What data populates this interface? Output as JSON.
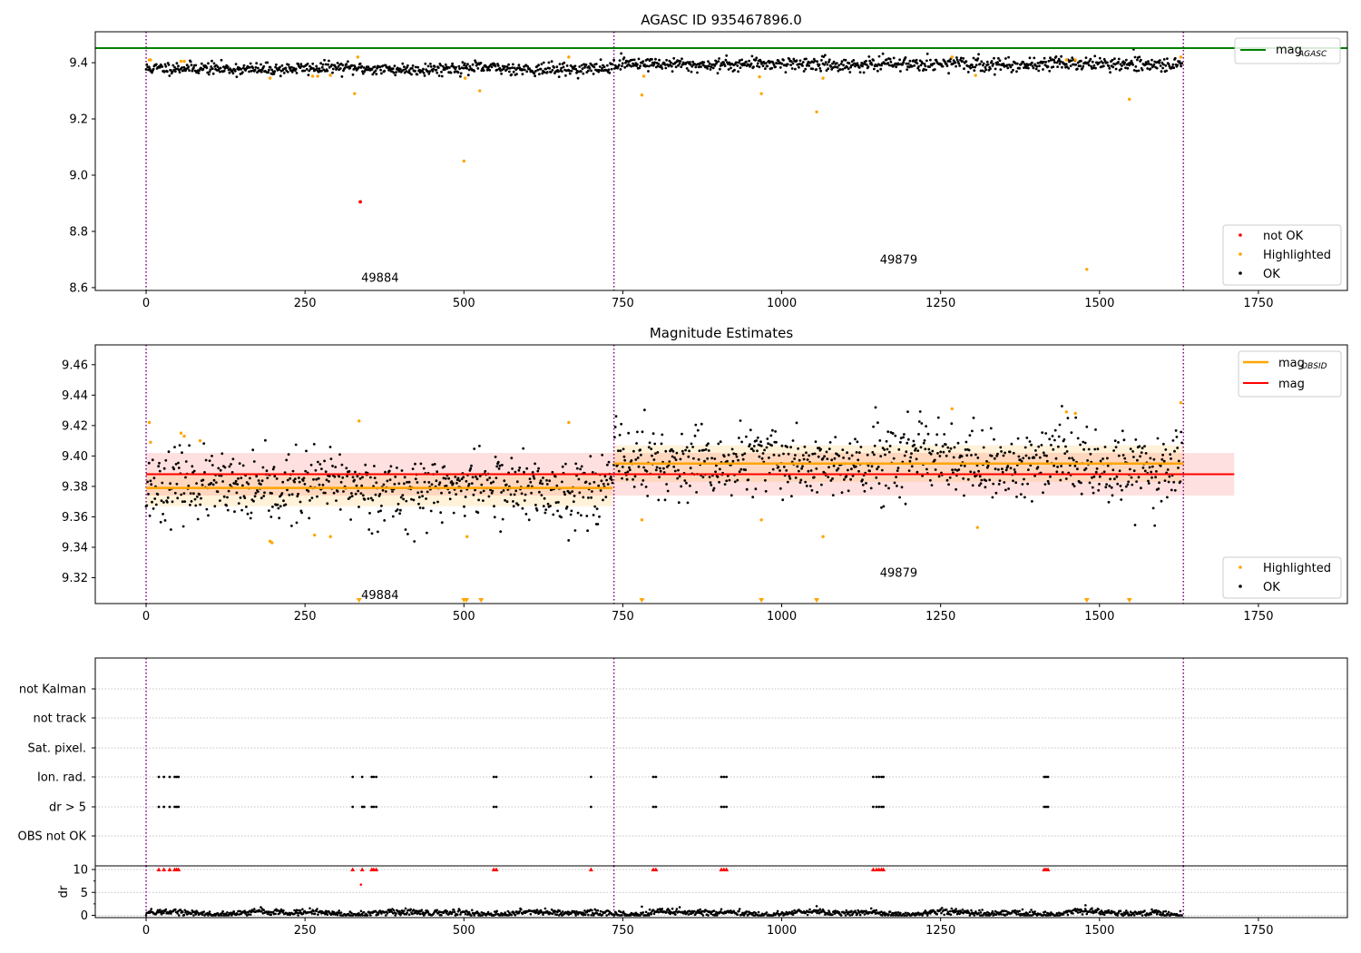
{
  "chart_data": [
    {
      "type": "scatter",
      "title": "AGASC ID 935467896.0",
      "xlabel": "",
      "ylabel": "",
      "xlim": [
        -80,
        1890
      ],
      "ylim": [
        8.59,
        9.51
      ],
      "xticks": [
        0,
        250,
        500,
        750,
        1000,
        1250,
        1500,
        1750
      ],
      "yticks": [
        8.6,
        8.8,
        9.0,
        9.2,
        9.4
      ],
      "ytick_labels": [
        "8.6",
        "8.8",
        "9.0",
        "9.2",
        "9.4"
      ],
      "grid": false,
      "obsid_boundaries": [
        0,
        736,
        1632
      ],
      "obsid_labels": [
        {
          "text": "49884",
          "x": 368,
          "y": 8.62
        },
        {
          "text": "49879",
          "x": 1184,
          "y": 8.685
        }
      ],
      "reference_line": {
        "name": "mag",
        "name_sub": "AGASC",
        "y": 9.452,
        "color": "#008000"
      },
      "series": [
        {
          "name": "not OK",
          "color": "#ff0000",
          "points": [
            [
              337,
              8.905
            ]
          ]
        },
        {
          "name": "Highlighted",
          "color": "#ffa500",
          "points": [
            [
              5,
              9.41
            ],
            [
              7,
              9.41
            ],
            [
              55,
              9.405
            ],
            [
              60,
              9.405
            ],
            [
              195,
              9.345
            ],
            [
              262,
              9.352
            ],
            [
              270,
              9.352
            ],
            [
              290,
              9.355
            ],
            [
              328,
              9.29
            ],
            [
              333,
              9.42
            ],
            [
              500,
              9.05
            ],
            [
              502,
              9.345
            ],
            [
              525,
              9.3
            ],
            [
              665,
              9.42
            ],
            [
              780,
              9.285
            ],
            [
              783,
              9.352
            ],
            [
              965,
              9.35
            ],
            [
              968,
              9.29
            ],
            [
              1055,
              9.225
            ],
            [
              1065,
              9.345
            ],
            [
              1268,
              9.42
            ],
            [
              1305,
              9.355
            ],
            [
              1448,
              9.41
            ],
            [
              1462,
              9.41
            ],
            [
              1480,
              8.665
            ],
            [
              1547,
              9.27
            ],
            [
              1628,
              9.42
            ]
          ]
        },
        {
          "name": "OK",
          "color": "#000000",
          "segments": [
            {
              "start": 0,
              "end": 734,
              "mean": 9.379,
              "std": 0.011
            },
            {
              "start": 736,
              "end": 1630,
              "mean": 9.395,
              "std": 0.012
            }
          ]
        }
      ],
      "legends": [
        {
          "placement": "upper-right",
          "entries": [
            "mag_AGASC"
          ]
        },
        {
          "placement": "lower-right",
          "entries": [
            "not OK",
            "Highlighted",
            "OK"
          ]
        }
      ]
    },
    {
      "type": "scatter",
      "title": "Magnitude Estimates",
      "xlabel": "",
      "ylabel": "",
      "xlim": [
        -80,
        1890
      ],
      "ylim": [
        9.303,
        9.473
      ],
      "xticks": [
        0,
        250,
        500,
        750,
        1000,
        1250,
        1500,
        1750
      ],
      "yticks": [
        9.32,
        9.34,
        9.36,
        9.38,
        9.4,
        9.42,
        9.44,
        9.46
      ],
      "ytick_labels": [
        "9.32",
        "9.34",
        "9.36",
        "9.38",
        "9.40",
        "9.42",
        "9.44",
        "9.46"
      ],
      "grid": false,
      "obsid_boundaries": [
        0,
        736,
        1632
      ],
      "obsid_labels": [
        {
          "text": "49884",
          "x": 368,
          "y": 9.306
        },
        {
          "text": "49879",
          "x": 1184,
          "y": 9.3205
        }
      ],
      "mag_band": {
        "name": "mag",
        "y": 9.388,
        "low": 9.374,
        "high": 9.402,
        "x_start": 0,
        "x_end": 1712,
        "color": "#ff0000"
      },
      "obsid_mags": [
        {
          "x_start": 0,
          "x_end": 734,
          "y": 9.379,
          "low": 9.367,
          "high": 9.389
        },
        {
          "x_start": 736,
          "x_end": 1632,
          "y": 9.395,
          "low": 9.383,
          "high": 9.407
        }
      ],
      "obsid_mag_name": "mag",
      "obsid_mag_name_sub": "OBSID",
      "obsid_mag_color": "#ffa500",
      "off_scale_markers": [
        335,
        500,
        504,
        527,
        780,
        968,
        1055,
        1480,
        1547
      ],
      "series": [
        {
          "name": "Highlighted",
          "color": "#ffa500",
          "points": [
            [
              5,
              9.422
            ],
            [
              7,
              9.409
            ],
            [
              55,
              9.415
            ],
            [
              60,
              9.413
            ],
            [
              85,
              9.41
            ],
            [
              195,
              9.344
            ],
            [
              198,
              9.343
            ],
            [
              265,
              9.348
            ],
            [
              290,
              9.347
            ],
            [
              335,
              9.423
            ],
            [
              505,
              9.347
            ],
            [
              665,
              9.422
            ],
            [
              780,
              9.358
            ],
            [
              968,
              9.358
            ],
            [
              1065,
              9.347
            ],
            [
              1268,
              9.431
            ],
            [
              1308,
              9.353
            ],
            [
              1448,
              9.429
            ],
            [
              1462,
              9.428
            ],
            [
              1628,
              9.435
            ]
          ]
        },
        {
          "name": "OK",
          "color": "#000000",
          "segments": [
            {
              "start": 0,
              "end": 734,
              "mean": 9.379,
              "std": 0.011
            },
            {
              "start": 736,
              "end": 1630,
              "mean": 9.395,
              "std": 0.012
            }
          ]
        }
      ],
      "legends": [
        {
          "placement": "upper-right",
          "entries": [
            "mag_OBSID",
            "mag"
          ]
        },
        {
          "placement": "lower-right",
          "entries": [
            "Highlighted",
            "OK"
          ]
        }
      ]
    },
    {
      "type": "scatter",
      "title": "",
      "xlabel": "",
      "ylabel": "",
      "xlim": [
        -80,
        1890
      ],
      "grid": true,
      "obsid_boundaries": [
        0,
        736,
        1632
      ],
      "flag_rows": [
        "not Kalman",
        "not track",
        "Sat. pixel.",
        "Ion. rad.",
        "dr > 5",
        "OBS not OK"
      ],
      "flag_points": {
        "Ion. rad.": [
          20,
          28,
          37,
          45,
          48,
          51,
          325,
          340,
          355,
          358,
          362,
          547,
          551,
          700,
          798,
          802,
          905,
          909,
          913,
          1144,
          1149,
          1153,
          1157,
          1160,
          1413,
          1416,
          1419
        ],
        "dr > 5": [
          20,
          28,
          37,
          45,
          48,
          51,
          325,
          340,
          343,
          355,
          358,
          362,
          547,
          551,
          700,
          798,
          802,
          905,
          909,
          913,
          1144,
          1149,
          1153,
          1157,
          1160,
          1413,
          1416,
          1419
        ]
      }
    },
    {
      "type": "scatter",
      "title": "",
      "xlabel": "",
      "ylabel": "dr",
      "xlim": [
        -80,
        1890
      ],
      "ylim": [
        -0.5,
        10.8
      ],
      "xticks": [
        0,
        250,
        500,
        750,
        1000,
        1250,
        1500,
        1750
      ],
      "yticks": [
        0,
        5,
        10
      ],
      "ytick_labels": [
        "0",
        "5",
        "10"
      ],
      "grid": true,
      "obsid_boundaries": [
        0,
        736,
        1632
      ],
      "clipped_markers": {
        "y": 10,
        "color": "#ff0000",
        "x": [
          20,
          28,
          37,
          45,
          48,
          51,
          325,
          340,
          355,
          358,
          362,
          547,
          551,
          700,
          798,
          802,
          905,
          909,
          913,
          1144,
          1149,
          1153,
          1157,
          1160,
          1413,
          1416,
          1419
        ]
      },
      "extra_points": [
        [
          338,
          6.7
        ],
        [
          1055,
          2.0
        ],
        [
          1478,
          2.2
        ],
        [
          780,
          1.9
        ]
      ],
      "series": [
        {
          "name": "dr",
          "color": "#000000",
          "typical_range": [
            0,
            2
          ]
        }
      ]
    }
  ]
}
